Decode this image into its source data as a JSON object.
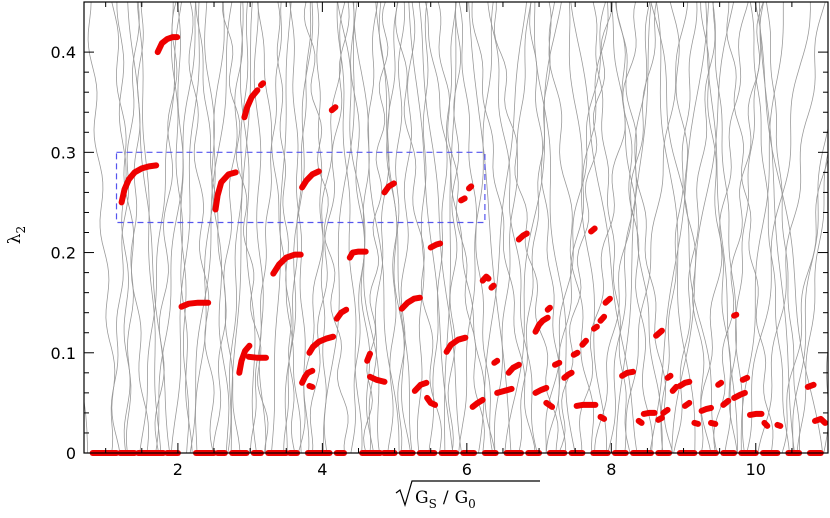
{
  "chart_data": {
    "type": "scatter",
    "title": "",
    "xlabel_parts": {
      "num": "G",
      "num_sub": "S",
      "sep": "/",
      "den": "G",
      "den_sub": "0"
    },
    "ylabel_parts": {
      "main": "λ",
      "sub": "2"
    },
    "xlim": [
      0.7,
      11.0
    ],
    "ylim": [
      0,
      0.45
    ],
    "xticks": [
      2,
      4,
      6,
      8,
      10
    ],
    "yticks": [
      0,
      0.1,
      0.2,
      0.3,
      0.4
    ],
    "ytick_labels": [
      "0",
      "0.1",
      "0.2",
      "0.3",
      "0.4"
    ],
    "xtick_labels": [
      "2",
      "4",
      "6",
      "8",
      "10"
    ],
    "colors": {
      "points": "#ee0000",
      "curves": "#9a9a9a",
      "box": "#5555ee",
      "axis": "#000000"
    },
    "highlight_box": {
      "x": [
        1.15,
        6.25
      ],
      "y": [
        0.23,
        0.3
      ]
    },
    "zero_segments": [
      [
        0.82,
        1.15
      ],
      [
        1.2,
        1.4
      ],
      [
        1.45,
        1.8
      ],
      [
        1.85,
        2.0
      ],
      [
        2.25,
        2.5
      ],
      [
        2.55,
        2.65
      ],
      [
        2.75,
        2.95
      ],
      [
        3.05,
        3.15
      ],
      [
        3.25,
        3.5
      ],
      [
        3.55,
        3.65
      ],
      [
        3.8,
        4.1
      ],
      [
        4.2,
        4.3
      ],
      [
        4.55,
        4.8
      ],
      [
        4.85,
        5.0
      ],
      [
        5.1,
        5.25
      ],
      [
        5.35,
        5.55
      ],
      [
        5.65,
        5.85
      ],
      [
        5.95,
        6.1
      ],
      [
        6.25,
        6.4
      ],
      [
        6.55,
        6.75
      ],
      [
        6.85,
        7.0
      ],
      [
        7.15,
        7.35
      ],
      [
        7.45,
        7.6
      ],
      [
        7.75,
        7.95
      ],
      [
        8.05,
        8.2
      ],
      [
        8.3,
        8.55
      ],
      [
        8.65,
        8.8
      ],
      [
        8.95,
        9.15
      ],
      [
        9.25,
        9.45
      ],
      [
        9.55,
        9.7
      ],
      [
        9.8,
        10.0
      ],
      [
        10.1,
        10.3
      ],
      [
        10.45,
        10.6
      ],
      [
        10.75,
        10.9
      ]
    ],
    "arcs": [
      {
        "x": [
          1.72,
          1.78,
          1.85,
          1.93,
          1.99
        ],
        "y": [
          0.4,
          0.409,
          0.413,
          0.415,
          0.415
        ]
      },
      {
        "x": [
          1.22,
          1.26,
          1.32,
          1.4,
          1.5,
          1.6,
          1.7
        ],
        "y": [
          0.25,
          0.263,
          0.273,
          0.28,
          0.284,
          0.286,
          0.287
        ]
      },
      {
        "x": [
          2.05,
          2.15,
          2.28,
          2.42
        ],
        "y": [
          0.146,
          0.149,
          0.15,
          0.15
        ]
      },
      {
        "x": [
          2.52,
          2.55,
          2.6,
          2.7,
          2.8
        ],
        "y": [
          0.243,
          0.257,
          0.27,
          0.278,
          0.28
        ]
      },
      {
        "x": [
          2.85,
          2.88,
          2.93,
          2.99
        ],
        "y": [
          0.08,
          0.092,
          0.102,
          0.107
        ]
      },
      {
        "x": [
          2.98,
          3.1,
          3.22
        ],
        "y": [
          0.096,
          0.095,
          0.095
        ]
      },
      {
        "x": [
          2.92,
          2.96,
          3.02,
          3.1
        ],
        "y": [
          0.335,
          0.345,
          0.355,
          0.362
        ]
      },
      {
        "x": [
          3.15,
          3.18
        ],
        "y": [
          0.367,
          0.369
        ]
      },
      {
        "x": [
          3.32,
          3.4,
          3.5,
          3.62,
          3.7
        ],
        "y": [
          0.179,
          0.188,
          0.195,
          0.198,
          0.198
        ]
      },
      {
        "x": [
          3.72,
          3.76,
          3.8,
          3.86
        ],
        "y": [
          0.07,
          0.076,
          0.08,
          0.082
        ]
      },
      {
        "x": [
          3.82,
          3.86
        ],
        "y": [
          0.067,
          0.066
        ]
      },
      {
        "x": [
          3.82,
          3.87,
          3.95,
          4.05,
          4.15
        ],
        "y": [
          0.1,
          0.106,
          0.111,
          0.114,
          0.116
        ]
      },
      {
        "x": [
          3.72,
          3.78,
          3.86,
          3.95
        ],
        "y": [
          0.265,
          0.272,
          0.278,
          0.281
        ]
      },
      {
        "x": [
          4.13,
          4.18
        ],
        "y": [
          0.342,
          0.345
        ]
      },
      {
        "x": [
          4.2,
          4.26,
          4.33
        ],
        "y": [
          0.134,
          0.14,
          0.143
        ]
      },
      {
        "x": [
          4.38,
          4.42,
          4.5,
          4.6
        ],
        "y": [
          0.195,
          0.2,
          0.201,
          0.201
        ]
      },
      {
        "x": [
          4.62,
          4.66
        ],
        "y": [
          0.092,
          0.099
        ]
      },
      {
        "x": [
          4.66,
          4.75,
          4.86
        ],
        "y": [
          0.076,
          0.073,
          0.071
        ]
      },
      {
        "x": [
          4.86,
          4.92,
          4.99
        ],
        "y": [
          0.26,
          0.266,
          0.269
        ]
      },
      {
        "x": [
          5.1,
          5.18,
          5.27,
          5.35
        ],
        "y": [
          0.144,
          0.15,
          0.154,
          0.155
        ]
      },
      {
        "x": [
          5.28,
          5.36,
          5.44
        ],
        "y": [
          0.062,
          0.068,
          0.07
        ]
      },
      {
        "x": [
          5.5,
          5.58,
          5.63
        ],
        "y": [
          0.205,
          0.208,
          0.209
        ]
      },
      {
        "x": [
          5.45,
          5.5,
          5.56
        ],
        "y": [
          0.055,
          0.05,
          0.048
        ]
      },
      {
        "x": [
          5.72,
          5.78,
          5.88,
          5.98
        ],
        "y": [
          0.101,
          0.108,
          0.113,
          0.115
        ]
      },
      {
        "x": [
          5.92,
          5.97
        ],
        "y": [
          0.252,
          0.254
        ]
      },
      {
        "x": [
          6.03,
          6.06
        ],
        "y": [
          0.264,
          0.266
        ]
      },
      {
        "x": [
          6.08,
          6.15,
          6.22
        ],
        "y": [
          0.046,
          0.05,
          0.053
        ]
      },
      {
        "x": [
          6.22,
          6.27,
          6.3
        ],
        "y": [
          0.172,
          0.176,
          0.174
        ]
      },
      {
        "x": [
          6.34,
          6.37
        ],
        "y": [
          0.165,
          0.167
        ]
      },
      {
        "x": [
          6.38,
          6.42
        ],
        "y": [
          0.09,
          0.092
        ]
      },
      {
        "x": [
          6.42,
          6.52,
          6.62
        ],
        "y": [
          0.06,
          0.062,
          0.064
        ]
      },
      {
        "x": [
          6.58,
          6.64,
          6.72
        ],
        "y": [
          0.08,
          0.085,
          0.088
        ]
      },
      {
        "x": [
          6.72,
          6.78,
          6.83
        ],
        "y": [
          0.213,
          0.217,
          0.219
        ]
      },
      {
        "x": [
          6.95,
          7.0,
          7.05,
          7.12
        ],
        "y": [
          0.121,
          0.128,
          0.132,
          0.135
        ]
      },
      {
        "x": [
          7.12,
          7.15
        ],
        "y": [
          0.143,
          0.145
        ]
      },
      {
        "x": [
          6.95,
          7.03,
          7.1
        ],
        "y": [
          0.06,
          0.063,
          0.065
        ]
      },
      {
        "x": [
          7.1,
          7.18
        ],
        "y": [
          0.05,
          0.046
        ]
      },
      {
        "x": [
          7.22,
          7.28
        ],
        "y": [
          0.088,
          0.09
        ]
      },
      {
        "x": [
          7.35,
          7.4,
          7.45
        ],
        "y": [
          0.075,
          0.078,
          0.08
        ]
      },
      {
        "x": [
          7.48,
          7.53
        ],
        "y": [
          0.098,
          0.1
        ]
      },
      {
        "x": [
          7.6,
          7.65
        ],
        "y": [
          0.108,
          0.112
        ]
      },
      {
        "x": [
          7.52,
          7.6,
          7.7,
          7.78
        ],
        "y": [
          0.047,
          0.048,
          0.048,
          0.048
        ]
      },
      {
        "x": [
          7.72,
          7.77
        ],
        "y": [
          0.221,
          0.224
        ]
      },
      {
        "x": [
          7.76,
          7.8
        ],
        "y": [
          0.124,
          0.126
        ]
      },
      {
        "x": [
          7.85,
          7.9
        ],
        "y": [
          0.132,
          0.136
        ]
      },
      {
        "x": [
          7.92,
          7.98
        ],
        "y": [
          0.15,
          0.154
        ]
      },
      {
        "x": [
          7.85,
          7.9
        ],
        "y": [
          0.036,
          0.034
        ]
      },
      {
        "x": [
          8.15,
          8.22,
          8.3
        ],
        "y": [
          0.077,
          0.08,
          0.081
        ]
      },
      {
        "x": [
          8.38,
          8.42
        ],
        "y": [
          0.032,
          0.03
        ]
      },
      {
        "x": [
          8.45,
          8.52,
          8.6
        ],
        "y": [
          0.039,
          0.04,
          0.04
        ]
      },
      {
        "x": [
          8.62,
          8.7
        ],
        "y": [
          0.117,
          0.122
        ]
      },
      {
        "x": [
          8.65,
          8.7
        ],
        "y": [
          0.033,
          0.035
        ]
      },
      {
        "x": [
          8.72,
          8.78
        ],
        "y": [
          0.04,
          0.043
        ]
      },
      {
        "x": [
          8.78,
          8.82
        ],
        "y": [
          0.075,
          0.077
        ]
      },
      {
        "x": [
          8.85,
          8.9
        ],
        "y": [
          0.062,
          0.066
        ]
      },
      {
        "x": [
          8.95,
          9.02,
          9.08
        ],
        "y": [
          0.067,
          0.07,
          0.071
        ]
      },
      {
        "x": [
          9.02,
          9.08
        ],
        "y": [
          0.047,
          0.05
        ]
      },
      {
        "x": [
          9.15,
          9.2
        ],
        "y": [
          0.03,
          0.029
        ]
      },
      {
        "x": [
          9.25,
          9.32,
          9.38
        ],
        "y": [
          0.042,
          0.044,
          0.045
        ]
      },
      {
        "x": [
          9.38,
          9.44
        ],
        "y": [
          0.03,
          0.029
        ]
      },
      {
        "x": [
          9.48,
          9.52
        ],
        "y": [
          0.068,
          0.07
        ]
      },
      {
        "x": [
          9.55,
          9.62
        ],
        "y": [
          0.048,
          0.052
        ]
      },
      {
        "x": [
          9.7,
          9.73
        ],
        "y": [
          0.137,
          0.138
        ]
      },
      {
        "x": [
          9.7,
          9.78,
          9.85
        ],
        "y": [
          0.055,
          0.058,
          0.06
        ]
      },
      {
        "x": [
          9.82,
          9.88
        ],
        "y": [
          0.073,
          0.075
        ]
      },
      {
        "x": [
          9.92,
          10.0,
          10.08
        ],
        "y": [
          0.038,
          0.039,
          0.039
        ]
      },
      {
        "x": [
          10.12,
          10.16
        ],
        "y": [
          0.03,
          0.027
        ]
      },
      {
        "x": [
          10.3,
          10.34
        ],
        "y": [
          0.028,
          0.027
        ]
      },
      {
        "x": [
          10.72,
          10.8
        ],
        "y": [
          0.066,
          0.068
        ]
      },
      {
        "x": [
          10.82,
          10.9,
          10.96
        ],
        "y": [
          0.032,
          0.034,
          0.03
        ]
      }
    ]
  }
}
